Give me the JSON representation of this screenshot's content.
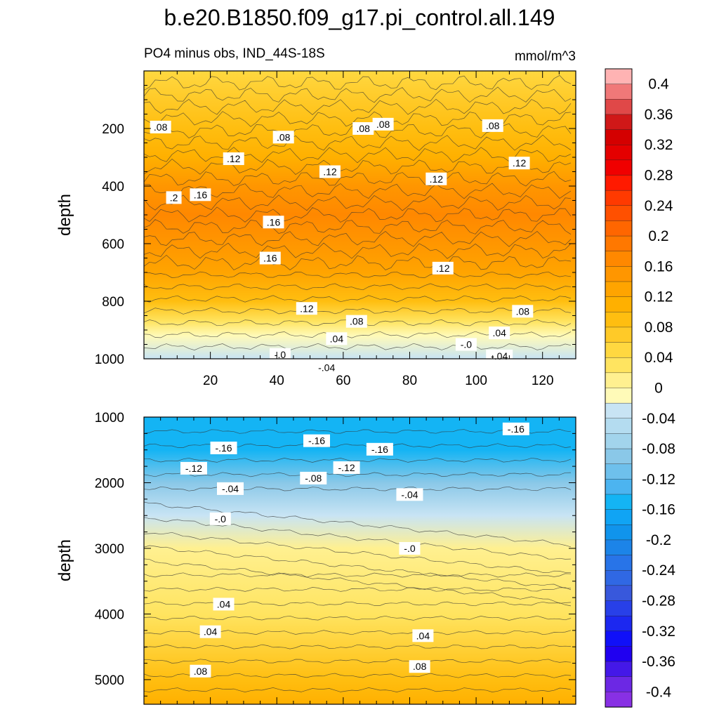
{
  "title": "b.e20.B1850.f09_g17.pi_control.all.149",
  "subtitle_left": "PO4 minus obs, IND_44S-18S",
  "subtitle_right": "mmol/m^3",
  "chart_data": [
    {
      "type": "contour",
      "panel": "upper",
      "xlabel": "",
      "ylabel": "depth",
      "xlim": [
        0,
        130
      ],
      "ylim": [
        1000,
        0
      ],
      "x_ticks": [
        20,
        40,
        60,
        80,
        100,
        120
      ],
      "y_ticks": [
        200,
        400,
        600,
        800,
        1000
      ],
      "depth_profile": [
        {
          "depth": 0,
          "value": 0.06
        },
        {
          "depth": 100,
          "value": 0.07
        },
        {
          "depth": 200,
          "value": 0.085
        },
        {
          "depth": 300,
          "value": 0.12
        },
        {
          "depth": 400,
          "value": 0.15
        },
        {
          "depth": 500,
          "value": 0.17
        },
        {
          "depth": 600,
          "value": 0.16
        },
        {
          "depth": 700,
          "value": 0.13
        },
        {
          "depth": 800,
          "value": 0.08
        },
        {
          "depth": 870,
          "value": 0.02
        },
        {
          "depth": 920,
          "value": -0.01
        },
        {
          "depth": 1000,
          "value": -0.04
        }
      ],
      "contour_labels": [
        {
          "text": ".08",
          "x": 5,
          "depth": 195
        },
        {
          "text": ".08",
          "x": 42,
          "depth": 230
        },
        {
          "text": ".08",
          "x": 66,
          "depth": 200
        },
        {
          "text": ".08",
          "x": 72,
          "depth": 185
        },
        {
          "text": ".08",
          "x": 105,
          "depth": 190
        },
        {
          "text": ".12",
          "x": 27,
          "depth": 305
        },
        {
          "text": ".12",
          "x": 56,
          "depth": 350
        },
        {
          "text": ".12",
          "x": 88,
          "depth": 375
        },
        {
          "text": ".12",
          "x": 113,
          "depth": 320
        },
        {
          "text": ".2",
          "x": 9,
          "depth": 440
        },
        {
          "text": ".16",
          "x": 17,
          "depth": 430
        },
        {
          "text": ".16",
          "x": 39,
          "depth": 525
        },
        {
          "text": ".16",
          "x": 38,
          "depth": 650
        },
        {
          "text": ".12",
          "x": 90,
          "depth": 685
        },
        {
          "text": ".12",
          "x": 49,
          "depth": 825
        },
        {
          "text": ".08",
          "x": 64,
          "depth": 870
        },
        {
          "text": ".08",
          "x": 114,
          "depth": 835
        },
        {
          "text": ".04",
          "x": 58,
          "depth": 930
        },
        {
          "text": ".04",
          "x": 107,
          "depth": 910
        },
        {
          "text": "-.0",
          "x": 41,
          "depth": 985
        },
        {
          "text": "-.0",
          "x": 97,
          "depth": 950
        },
        {
          "text": "-.04",
          "x": 55,
          "depth": 1030
        },
        {
          "text": "-.04",
          "x": 107,
          "depth": 990
        }
      ]
    },
    {
      "type": "contour",
      "panel": "lower",
      "xlabel": "",
      "ylabel": "depth",
      "xlim": [
        0,
        130
      ],
      "ylim": [
        5375,
        1000
      ],
      "y_ticks": [
        1000,
        2000,
        3000,
        4000,
        5000
      ],
      "depth_profile": [
        {
          "depth": 1000,
          "value": -0.16
        },
        {
          "depth": 1500,
          "value": -0.14
        },
        {
          "depth": 2000,
          "value": -0.08
        },
        {
          "depth": 2500,
          "value": -0.02
        },
        {
          "depth": 3000,
          "value": 0.01
        },
        {
          "depth": 4000,
          "value": 0.04
        },
        {
          "depth": 5000,
          "value": 0.08
        },
        {
          "depth": 5375,
          "value": 0.1
        }
      ],
      "contour_labels": [
        {
          "text": "-.16",
          "x": 24,
          "depth": 1470
        },
        {
          "text": "-.16",
          "x": 52,
          "depth": 1360
        },
        {
          "text": "-.16",
          "x": 71,
          "depth": 1490
        },
        {
          "text": "-.16",
          "x": 112,
          "depth": 1180
        },
        {
          "text": "-.12",
          "x": 15,
          "depth": 1780
        },
        {
          "text": "-.12",
          "x": 61,
          "depth": 1770
        },
        {
          "text": "-.08",
          "x": 51,
          "depth": 1930
        },
        {
          "text": "-.04",
          "x": 26,
          "depth": 2090
        },
        {
          "text": "-.04",
          "x": 80,
          "depth": 2180
        },
        {
          "text": "-.0",
          "x": 23,
          "depth": 2550
        },
        {
          "text": "-.0",
          "x": 80,
          "depth": 3000
        },
        {
          "text": ".04",
          "x": 24,
          "depth": 3850
        },
        {
          "text": ".04",
          "x": 20,
          "depth": 4270
        },
        {
          "text": ".04",
          "x": 84,
          "depth": 4330
        },
        {
          "text": ".08",
          "x": 17,
          "depth": 4870
        },
        {
          "text": ".08",
          "x": 83,
          "depth": 4800
        }
      ]
    }
  ],
  "colorbar": {
    "labels": [
      "0.4",
      "0.36",
      "0.32",
      "0.28",
      "0.24",
      "0.2",
      "0.16",
      "0.12",
      "0.08",
      "0.04",
      "0",
      "-0.04",
      "-0.08",
      "-0.12",
      "-0.16",
      "-0.2",
      "-0.24",
      "-0.28",
      "-0.32",
      "-0.36",
      "-0.4"
    ],
    "colors": [
      "#ffb3b3",
      "#f07878",
      "#e04848",
      "#d01818",
      "#d40000",
      "#e40000",
      "#f00000",
      "#ff1a00",
      "#ff3a00",
      "#ff5000",
      "#ff6600",
      "#ff7800",
      "#ff8800",
      "#ff9600",
      "#ffa400",
      "#ffb000",
      "#ffbe10",
      "#ffca28",
      "#ffd840",
      "#ffe460",
      "#fff090",
      "#fffab8",
      "#c8e4f4",
      "#b4dcf0",
      "#a2d4ec",
      "#8ac8e8",
      "#6ec0ec",
      "#4cb4f0",
      "#14b4f4",
      "#10a4f4",
      "#1094ec",
      "#1c84e8",
      "#2874e8",
      "#3068e4",
      "#3858dc",
      "#2840e8",
      "#1c28f0",
      "#1010f8",
      "#2000f0",
      "#4418e8",
      "#6c28e4",
      "#8830e4"
    ]
  }
}
